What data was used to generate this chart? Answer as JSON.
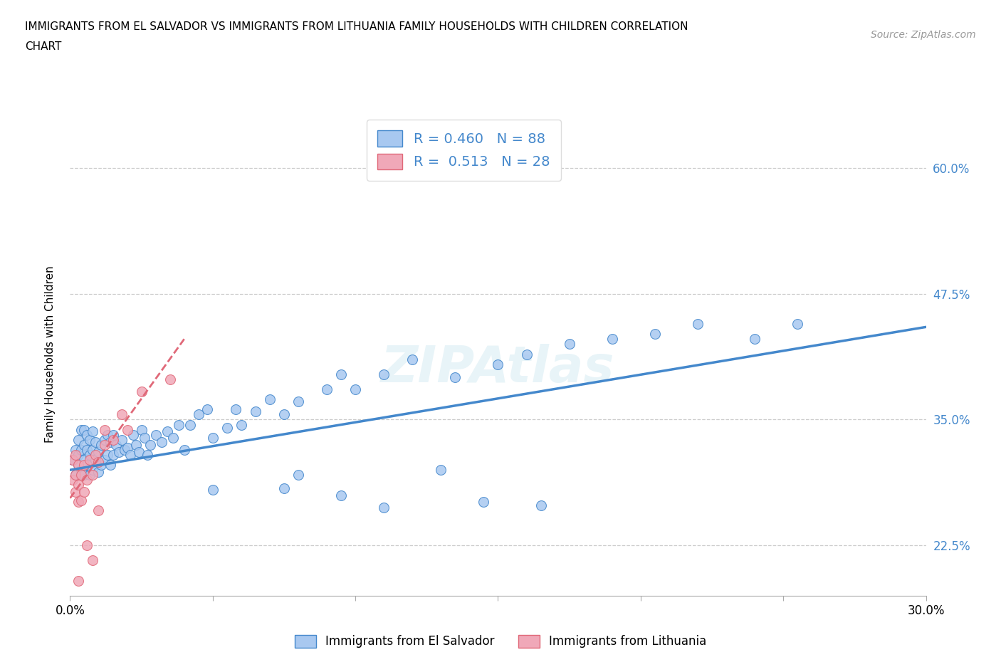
{
  "title_line1": "IMMIGRANTS FROM EL SALVADOR VS IMMIGRANTS FROM LITHUANIA FAMILY HOUSEHOLDS WITH CHILDREN CORRELATION",
  "title_line2": "CHART",
  "source_text": "Source: ZipAtlas.com",
  "ylabel_label": "Family Households with Children",
  "legend_label1": "Immigrants from El Salvador",
  "legend_label2": "Immigrants from Lithuania",
  "R1": "0.460",
  "N1": "88",
  "R2": "0.513",
  "N2": "28",
  "watermark": "ZIPAtlas",
  "xlim": [
    0.0,
    0.3
  ],
  "ylim": [
    0.175,
    0.655
  ],
  "ytick_vals": [
    0.225,
    0.35,
    0.475,
    0.6
  ],
  "ytick_labels": [
    "22.5%",
    "35.0%",
    "47.5%",
    "60.0%"
  ],
  "xtick_vals": [
    0.0,
    0.05,
    0.1,
    0.15,
    0.2,
    0.25,
    0.3
  ],
  "xtick_labels": [
    "0.0%",
    "",
    "",
    "",
    "",
    "",
    "30.0%"
  ],
  "color1": "#a8c8f0",
  "color2": "#f0a8b8",
  "line_color1": "#4488cc",
  "line_color2": "#e06878",
  "el_salvador_x": [
    0.001,
    0.002,
    0.002,
    0.003,
    0.003,
    0.003,
    0.004,
    0.004,
    0.004,
    0.005,
    0.005,
    0.005,
    0.005,
    0.006,
    0.006,
    0.006,
    0.007,
    0.007,
    0.007,
    0.008,
    0.008,
    0.008,
    0.009,
    0.009,
    0.01,
    0.01,
    0.011,
    0.011,
    0.012,
    0.012,
    0.013,
    0.013,
    0.014,
    0.014,
    0.015,
    0.015,
    0.016,
    0.017,
    0.018,
    0.019,
    0.02,
    0.021,
    0.022,
    0.023,
    0.024,
    0.025,
    0.026,
    0.027,
    0.028,
    0.03,
    0.032,
    0.034,
    0.036,
    0.038,
    0.04,
    0.042,
    0.045,
    0.048,
    0.05,
    0.055,
    0.058,
    0.06,
    0.065,
    0.07,
    0.075,
    0.08,
    0.09,
    0.095,
    0.1,
    0.11,
    0.12,
    0.135,
    0.15,
    0.16,
    0.175,
    0.19,
    0.205,
    0.22,
    0.24,
    0.255,
    0.145,
    0.075,
    0.13,
    0.165,
    0.05,
    0.08,
    0.11,
    0.095
  ],
  "el_salvador_y": [
    0.31,
    0.295,
    0.32,
    0.305,
    0.315,
    0.33,
    0.3,
    0.32,
    0.34,
    0.295,
    0.31,
    0.325,
    0.34,
    0.305,
    0.32,
    0.335,
    0.295,
    0.315,
    0.33,
    0.3,
    0.32,
    0.338,
    0.31,
    0.328,
    0.298,
    0.318,
    0.305,
    0.325,
    0.31,
    0.33,
    0.315,
    0.335,
    0.305,
    0.328,
    0.315,
    0.335,
    0.325,
    0.318,
    0.33,
    0.32,
    0.322,
    0.315,
    0.335,
    0.325,
    0.318,
    0.34,
    0.332,
    0.315,
    0.325,
    0.335,
    0.328,
    0.338,
    0.332,
    0.345,
    0.32,
    0.345,
    0.355,
    0.36,
    0.332,
    0.342,
    0.36,
    0.345,
    0.358,
    0.37,
    0.355,
    0.368,
    0.38,
    0.395,
    0.38,
    0.395,
    0.41,
    0.392,
    0.405,
    0.415,
    0.425,
    0.43,
    0.435,
    0.445,
    0.43,
    0.445,
    0.268,
    0.282,
    0.3,
    0.265,
    0.28,
    0.295,
    0.263,
    0.275
  ],
  "lithuania_x": [
    0.001,
    0.001,
    0.002,
    0.002,
    0.002,
    0.003,
    0.003,
    0.003,
    0.004,
    0.004,
    0.005,
    0.005,
    0.006,
    0.007,
    0.008,
    0.009,
    0.01,
    0.012,
    0.015,
    0.018,
    0.02,
    0.025,
    0.035,
    0.012,
    0.008,
    0.003,
    0.006,
    0.01
  ],
  "lithuania_y": [
    0.29,
    0.31,
    0.278,
    0.295,
    0.315,
    0.268,
    0.285,
    0.305,
    0.27,
    0.295,
    0.278,
    0.305,
    0.29,
    0.31,
    0.295,
    0.315,
    0.308,
    0.325,
    0.33,
    0.355,
    0.34,
    0.378,
    0.39,
    0.34,
    0.21,
    0.19,
    0.225,
    0.26
  ],
  "line1_x0": 0.0,
  "line1_y0": 0.3,
  "line1_x1": 0.3,
  "line1_y1": 0.442,
  "line2_x0": 0.0,
  "line2_y0": 0.272,
  "line2_x1": 0.04,
  "line2_y1": 0.43
}
